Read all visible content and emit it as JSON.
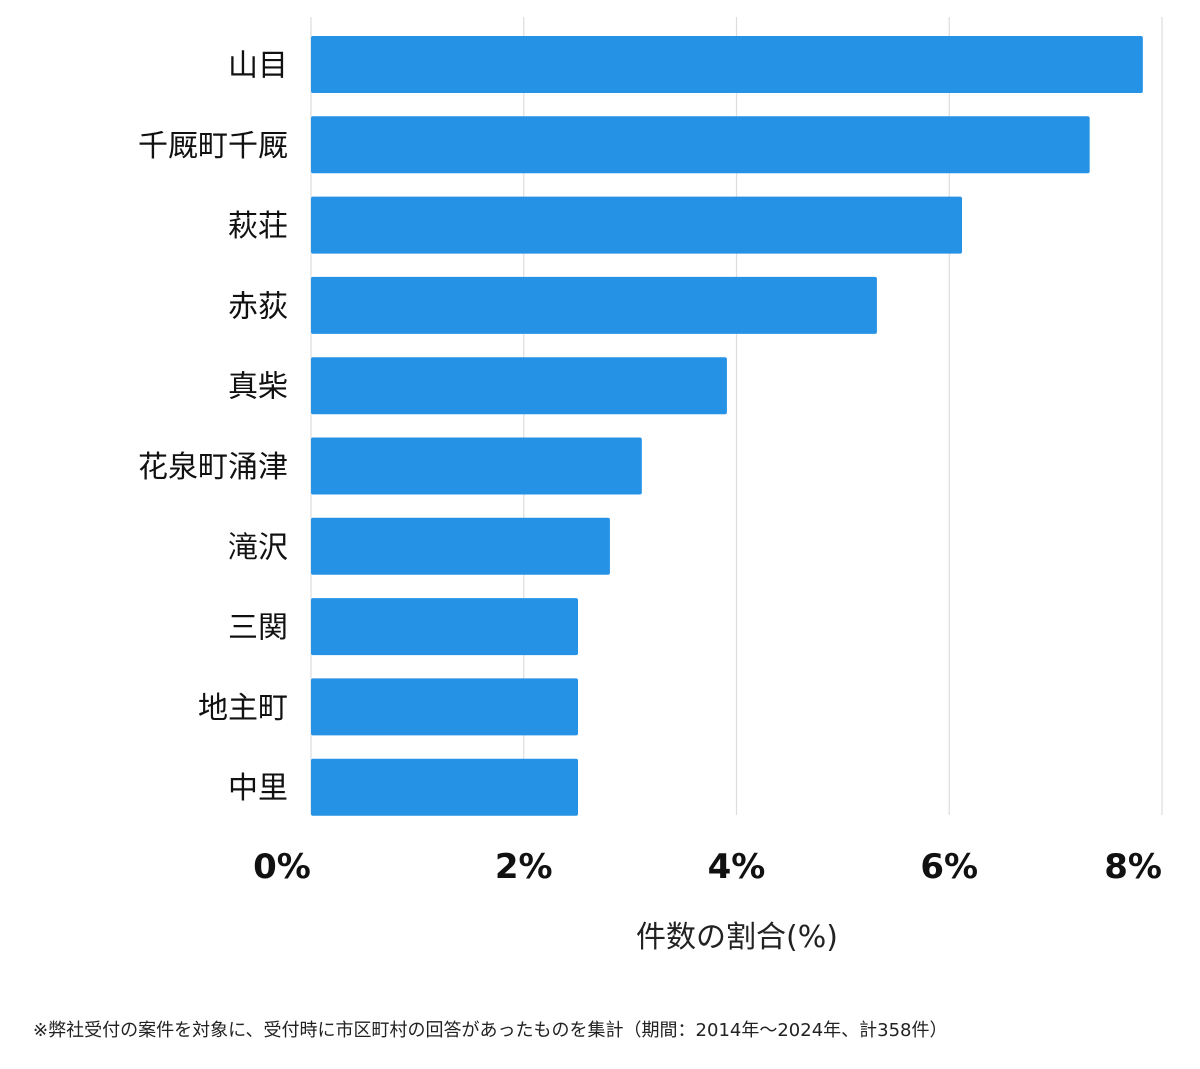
{
  "chart_data": {
    "type": "bar",
    "orientation": "horizontal",
    "categories": [
      "山目",
      "千厩町千厩",
      "萩荘",
      "赤荻",
      "真柴",
      "花泉町涌津",
      "滝沢",
      "三関",
      "地主町",
      "中里"
    ],
    "values": [
      7.82,
      7.32,
      6.12,
      5.32,
      3.91,
      3.11,
      2.81,
      2.51,
      2.51,
      2.51
    ],
    "xlim": [
      0,
      8
    ],
    "xticks": [
      0,
      2,
      4,
      6,
      8
    ],
    "tick_labels": [
      "0%",
      "2%",
      "4%",
      "6%",
      "8%"
    ],
    "xlabel": "件数の割合(%)",
    "ylabel": "",
    "grid": true,
    "bar_color": "#2592e6",
    "grid_color": "#dddddd"
  },
  "footnote": "※弊社受付の案件を対象に、受付時に市区町村の回答があったものを集計（期間：2014年～2024年、計358件）"
}
